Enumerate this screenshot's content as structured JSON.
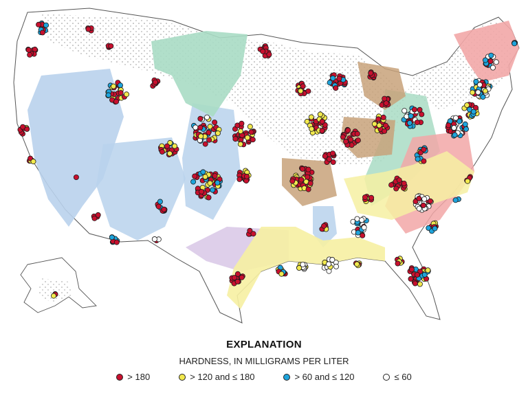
{
  "explanation": {
    "title": "EXPLANATION",
    "subtitle": "HARDNESS, IN MILLIGRAMS PER LITER",
    "classes": [
      {
        "label": "> 180",
        "color": "#c8102e"
      },
      {
        "label": "> 120 and ≤ 180",
        "color": "#f2e94e"
      },
      {
        "label": "> 60 and ≤ 120",
        "color": "#1ea4dc"
      },
      {
        "label": "≤ 60",
        "color": "#ffffff"
      }
    ]
  },
  "colors": {
    "land": "#ffffff",
    "outline": "#555555",
    "blue_aquifer": "#b9d2ec",
    "green_aquifer": "#a9dcc4",
    "pink_aquifer": "#f2a7a7",
    "yellow_aquifer": "#f6f0a2",
    "brown_aquifer": "#c8a27a",
    "lavender_aquifer": "#d8c7e6"
  }
}
